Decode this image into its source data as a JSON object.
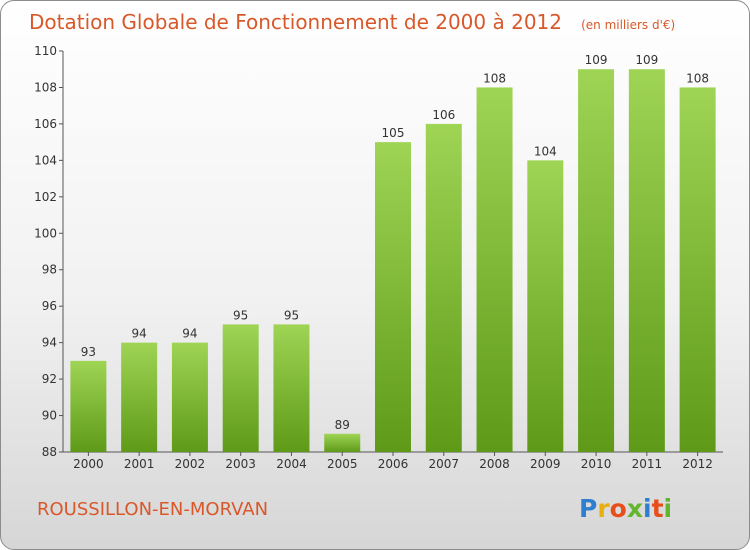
{
  "header": {
    "title": "Dotation Globale de Fonctionnement de 2000 à 2012",
    "subtitle": "(en milliers d'€)"
  },
  "footer": {
    "commune": "ROUSSILLON-EN-MORVAN",
    "logo_letters": [
      "P",
      "r",
      "o",
      "x",
      "i",
      "t",
      "i"
    ],
    "logo_colors": [
      "#2f7fd1",
      "#e8b00f",
      "#e84d1c",
      "#64b52e",
      "#2f7fd1",
      "#e84d1c",
      "#64b52e"
    ]
  },
  "chart_data": {
    "type": "bar",
    "categories": [
      "2000",
      "2001",
      "2002",
      "2003",
      "2004",
      "2005",
      "2006",
      "2007",
      "2008",
      "2009",
      "2010",
      "2011",
      "2012"
    ],
    "values": [
      93,
      94,
      94,
      95,
      95,
      89,
      105,
      106,
      108,
      104,
      109,
      109,
      108
    ],
    "ylim": [
      88,
      110
    ],
    "yticks": [
      88,
      90,
      92,
      94,
      96,
      98,
      100,
      102,
      104,
      106,
      108,
      110
    ],
    "grid": false,
    "bar_colors": {
      "top": "#9fd455",
      "bottom": "#5e9a18"
    }
  }
}
